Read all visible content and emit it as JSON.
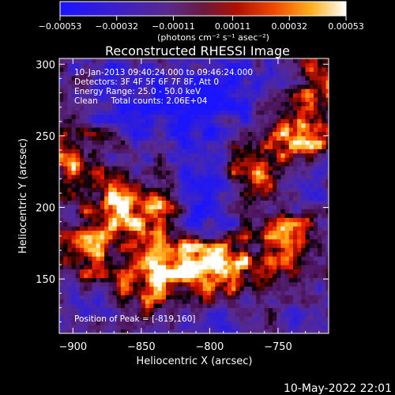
{
  "chart_data": {
    "type": "heatmap",
    "title": "Reconstructed RHESSI Image",
    "xlabel": "Heliocentric X (arcsec)",
    "ylabel": "Heliocentric Y (arcsec)",
    "xlim": [
      -910,
      -713
    ],
    "ylim": [
      112,
      304
    ],
    "x_ticks": [
      -900,
      -850,
      -800,
      -750
    ],
    "x_tick_labels": [
      "−900",
      "−850",
      "−800",
      "−750"
    ],
    "y_ticks": [
      150,
      200,
      250,
      300
    ],
    "y_tick_labels": [
      "150",
      "200",
      "250",
      "300"
    ],
    "colorbar": {
      "min": -0.00053,
      "max": 0.00053,
      "ticks": [
        -0.00053,
        -0.00032,
        -0.00011,
        0.00011,
        0.00032,
        0.00053
      ],
      "tick_labels": [
        "−0.00053",
        "−0.00032",
        "−0.00011",
        "0.00011",
        "0.00032",
        "0.00053"
      ],
      "unit_label": "(photons cm⁻² s⁻¹ asec⁻²)"
    },
    "annotations": [
      "10-Jan-2013 09:40:24.000 to 09:46:24.000",
      "Detectors: 3F 4F 5F 6F 7F 8F, Att 0",
      "Energy Range: 25.0 - 50.0 keV",
      "Clean     Total counts: 2.06E+04"
    ],
    "peak_label": "Position of Peak = [-819,160]",
    "peak": [
      -819,
      160
    ],
    "bright_regions": [
      {
        "x": -819,
        "y": 160,
        "level": 1.0
      },
      {
        "x": -787,
        "y": 158,
        "level": 0.95
      },
      {
        "x": -742,
        "y": 172,
        "level": 0.85
      },
      {
        "x": -848,
        "y": 148,
        "level": 0.75
      },
      {
        "x": -733,
        "y": 252,
        "level": 0.8
      },
      {
        "x": -868,
        "y": 200,
        "level": 0.7
      },
      {
        "x": -890,
        "y": 172,
        "level": 0.65
      },
      {
        "x": -903,
        "y": 232,
        "level": 0.6
      },
      {
        "x": -842,
        "y": 196,
        "level": 0.6
      },
      {
        "x": -765,
        "y": 228,
        "level": 0.65
      },
      {
        "x": -720,
        "y": 290,
        "level": 0.7
      }
    ],
    "dim_regions": [
      {
        "x": -822,
        "y": 262,
        "level": -0.6
      },
      {
        "x": -790,
        "y": 278,
        "level": -0.5
      },
      {
        "x": -812,
        "y": 198,
        "level": -0.45
      },
      {
        "x": -860,
        "y": 280,
        "level": -0.4
      }
    ],
    "colors": {
      "scale": [
        "#000000",
        "#1a14ff",
        "#4a2a9a",
        "#5a2a88",
        "#8a1010",
        "#e81a00",
        "#ff8a00",
        "#ffd23a",
        "#ffffff"
      ]
    }
  },
  "footer": {
    "date": "10-May-2022 22:01"
  }
}
